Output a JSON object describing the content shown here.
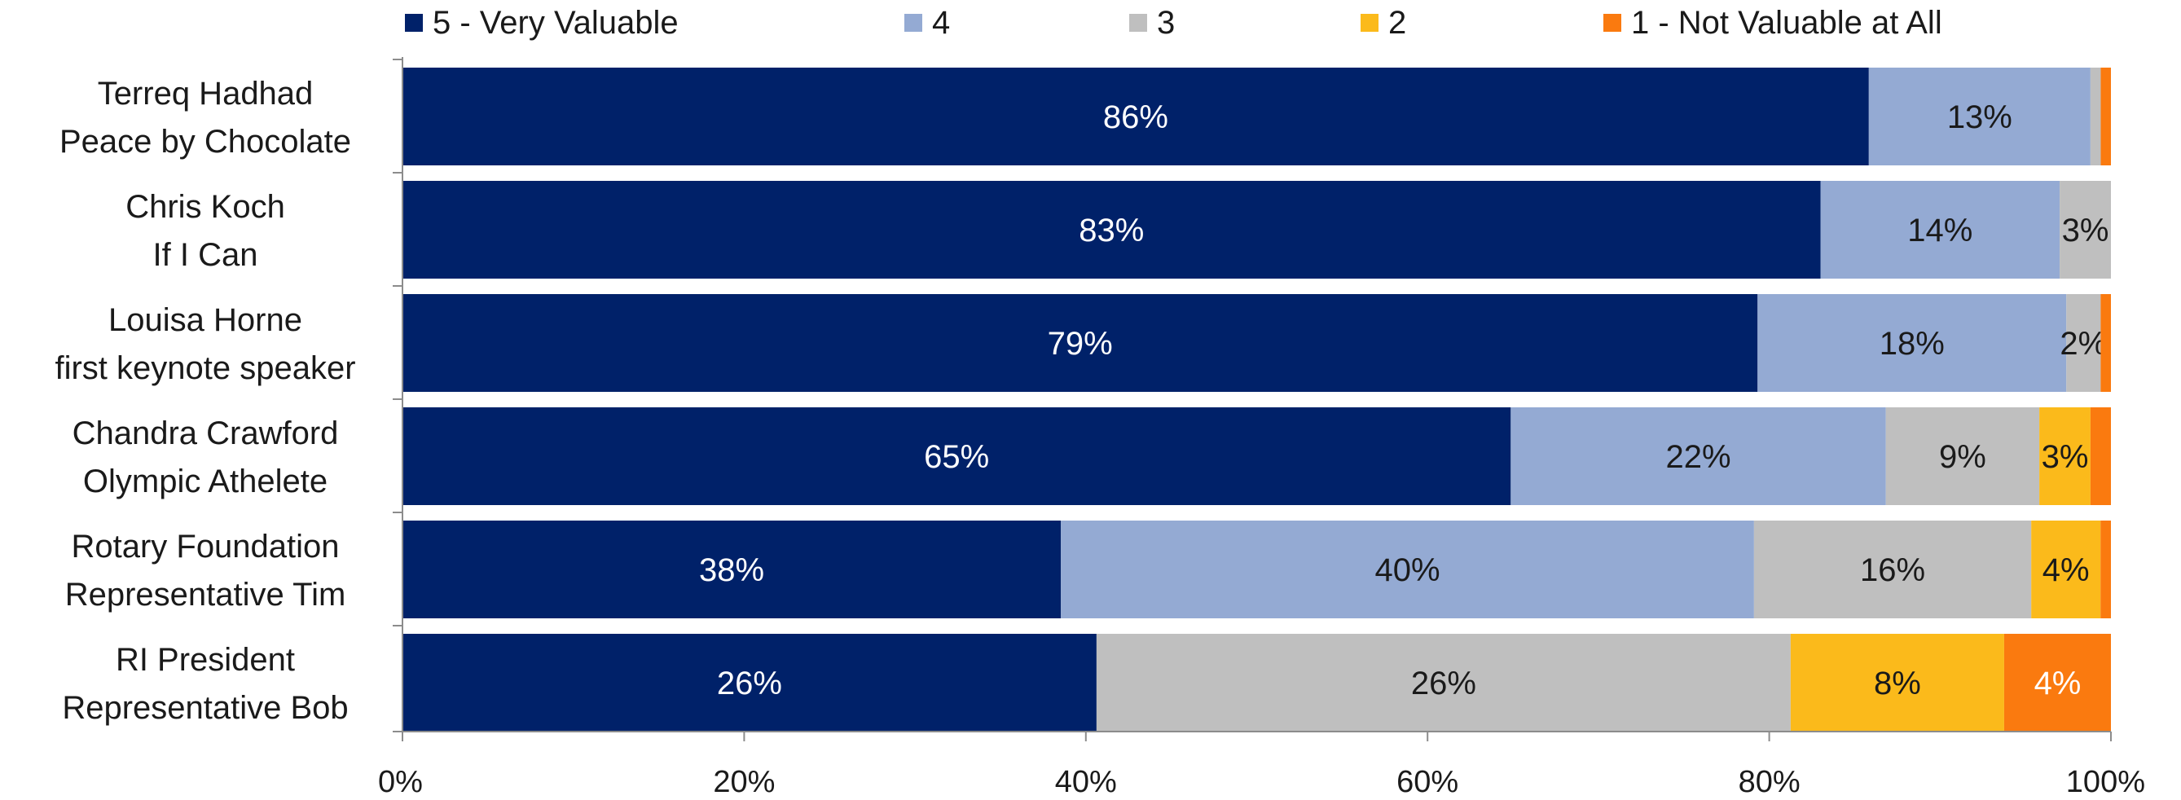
{
  "chart_data": {
    "type": "bar",
    "orientation": "horizontal",
    "stacked": true,
    "percent_stacked": true,
    "categories": [
      [
        "Terreq Hadhad",
        "Peace by Chocolate"
      ],
      [
        "Chris Koch",
        "If I Can"
      ],
      [
        "Louisa Horne",
        "first keynote speaker"
      ],
      [
        "Chandra Crawford",
        "Olympic Athelete"
      ],
      [
        "Rotary Foundation",
        "Representative Tim"
      ],
      [
        "RI President",
        "Representative Bob"
      ]
    ],
    "series": [
      {
        "name": "5 - Very Valuable",
        "color": "#002169",
        "values": [
          86,
          83,
          79,
          65,
          38,
          26
        ],
        "labels": [
          "86%",
          "83%",
          "79%",
          "65%",
          "38%",
          "26%"
        ],
        "label_color": "#ffffff"
      },
      {
        "name": "4",
        "color": "#94AAD3",
        "values": [
          13,
          14,
          18,
          22,
          40,
          0
        ],
        "labels": [
          "13%",
          "14%",
          "18%",
          "22%",
          "40%",
          ""
        ],
        "label_color": "#1a1a1a"
      },
      {
        "name": "3",
        "color": "#BFBFBF",
        "values": [
          0.6,
          3,
          2,
          9,
          16,
          26
        ],
        "labels": [
          "",
          "3%",
          "2%",
          "9%",
          "16%",
          "26%"
        ],
        "label_color": "#1a1a1a"
      },
      {
        "name": "2",
        "color": "#FBBA1B",
        "values": [
          0,
          0,
          0,
          3,
          4,
          8
        ],
        "labels": [
          "",
          "",
          "",
          "3%",
          "4%",
          "8%"
        ],
        "label_color": "#1a1a1a"
      },
      {
        "name": "1 - Not Valuable at All",
        "color": "#FA7A0F",
        "values": [
          0.6,
          0,
          0.6,
          1.2,
          0.6,
          4
        ],
        "labels": [
          "",
          "",
          "",
          "",
          "",
          "4%"
        ],
        "label_color": "#ffffff"
      }
    ],
    "xlim": [
      0,
      100
    ],
    "x_ticks": [
      "0%",
      "20%",
      "40%",
      "60%",
      "80%",
      "100%"
    ],
    "title": "",
    "xlabel": "",
    "ylabel": "",
    "legend_position": "top",
    "grid": false
  }
}
